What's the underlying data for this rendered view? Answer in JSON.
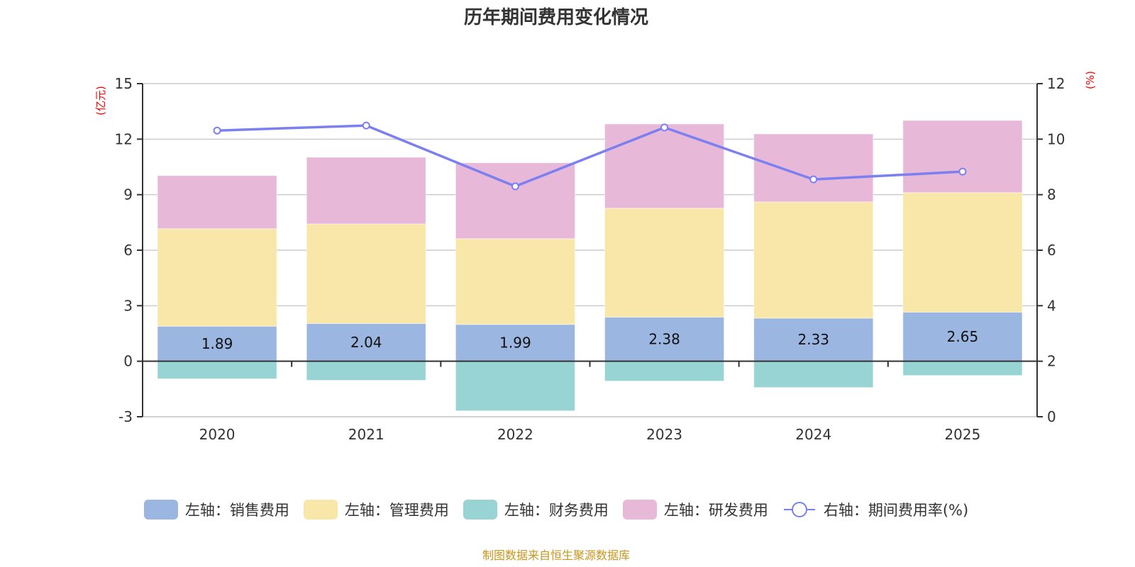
{
  "chart_data": {
    "type": "bar",
    "subtype": "stacked-bar-with-line",
    "title": "历年期间费用变化情况",
    "categories": [
      "2020",
      "2021",
      "2022",
      "2023",
      "2024",
      "2025"
    ],
    "left_axis": {
      "unit_label": "(亿元)",
      "ylim": [
        -3,
        15
      ],
      "ticks": [
        -3,
        0,
        3,
        6,
        9,
        12,
        15
      ]
    },
    "right_axis": {
      "unit_label": "(%)",
      "ylim": [
        0,
        12
      ],
      "ticks": [
        0,
        2,
        4,
        6,
        8,
        10,
        12
      ]
    },
    "grid": true,
    "legend_position": "bottom",
    "series": [
      {
        "name": "左轴：销售费用",
        "axis": "left",
        "type": "bar",
        "color": "#9bb6e0",
        "values": [
          1.89,
          2.04,
          1.99,
          2.38,
          2.33,
          2.65
        ],
        "show_labels": true
      },
      {
        "name": "左轴：管理费用",
        "axis": "left",
        "type": "bar",
        "color": "#f8e7a8",
        "values": [
          5.27,
          5.38,
          4.63,
          5.89,
          6.28,
          6.46
        ],
        "show_labels": false
      },
      {
        "name": "左轴：财务费用",
        "axis": "left",
        "type": "bar",
        "color": "#98d4d4",
        "values": [
          -0.95,
          -1.03,
          -2.68,
          -1.07,
          -1.42,
          -0.77
        ],
        "show_labels": false
      },
      {
        "name": "左轴：研发费用",
        "axis": "left",
        "type": "bar",
        "color": "#e7b8d8",
        "values": [
          2.87,
          3.6,
          4.1,
          4.55,
          3.67,
          3.9
        ],
        "show_labels": false
      },
      {
        "name": "右轴：期间费用率(%)",
        "axis": "right",
        "type": "line",
        "color": "#7b7ff0",
        "values": [
          10.31,
          10.49,
          8.3,
          10.42,
          8.55,
          8.83
        ]
      }
    ]
  },
  "footer": {
    "source": "制图数据来自恒生聚源数据库"
  }
}
